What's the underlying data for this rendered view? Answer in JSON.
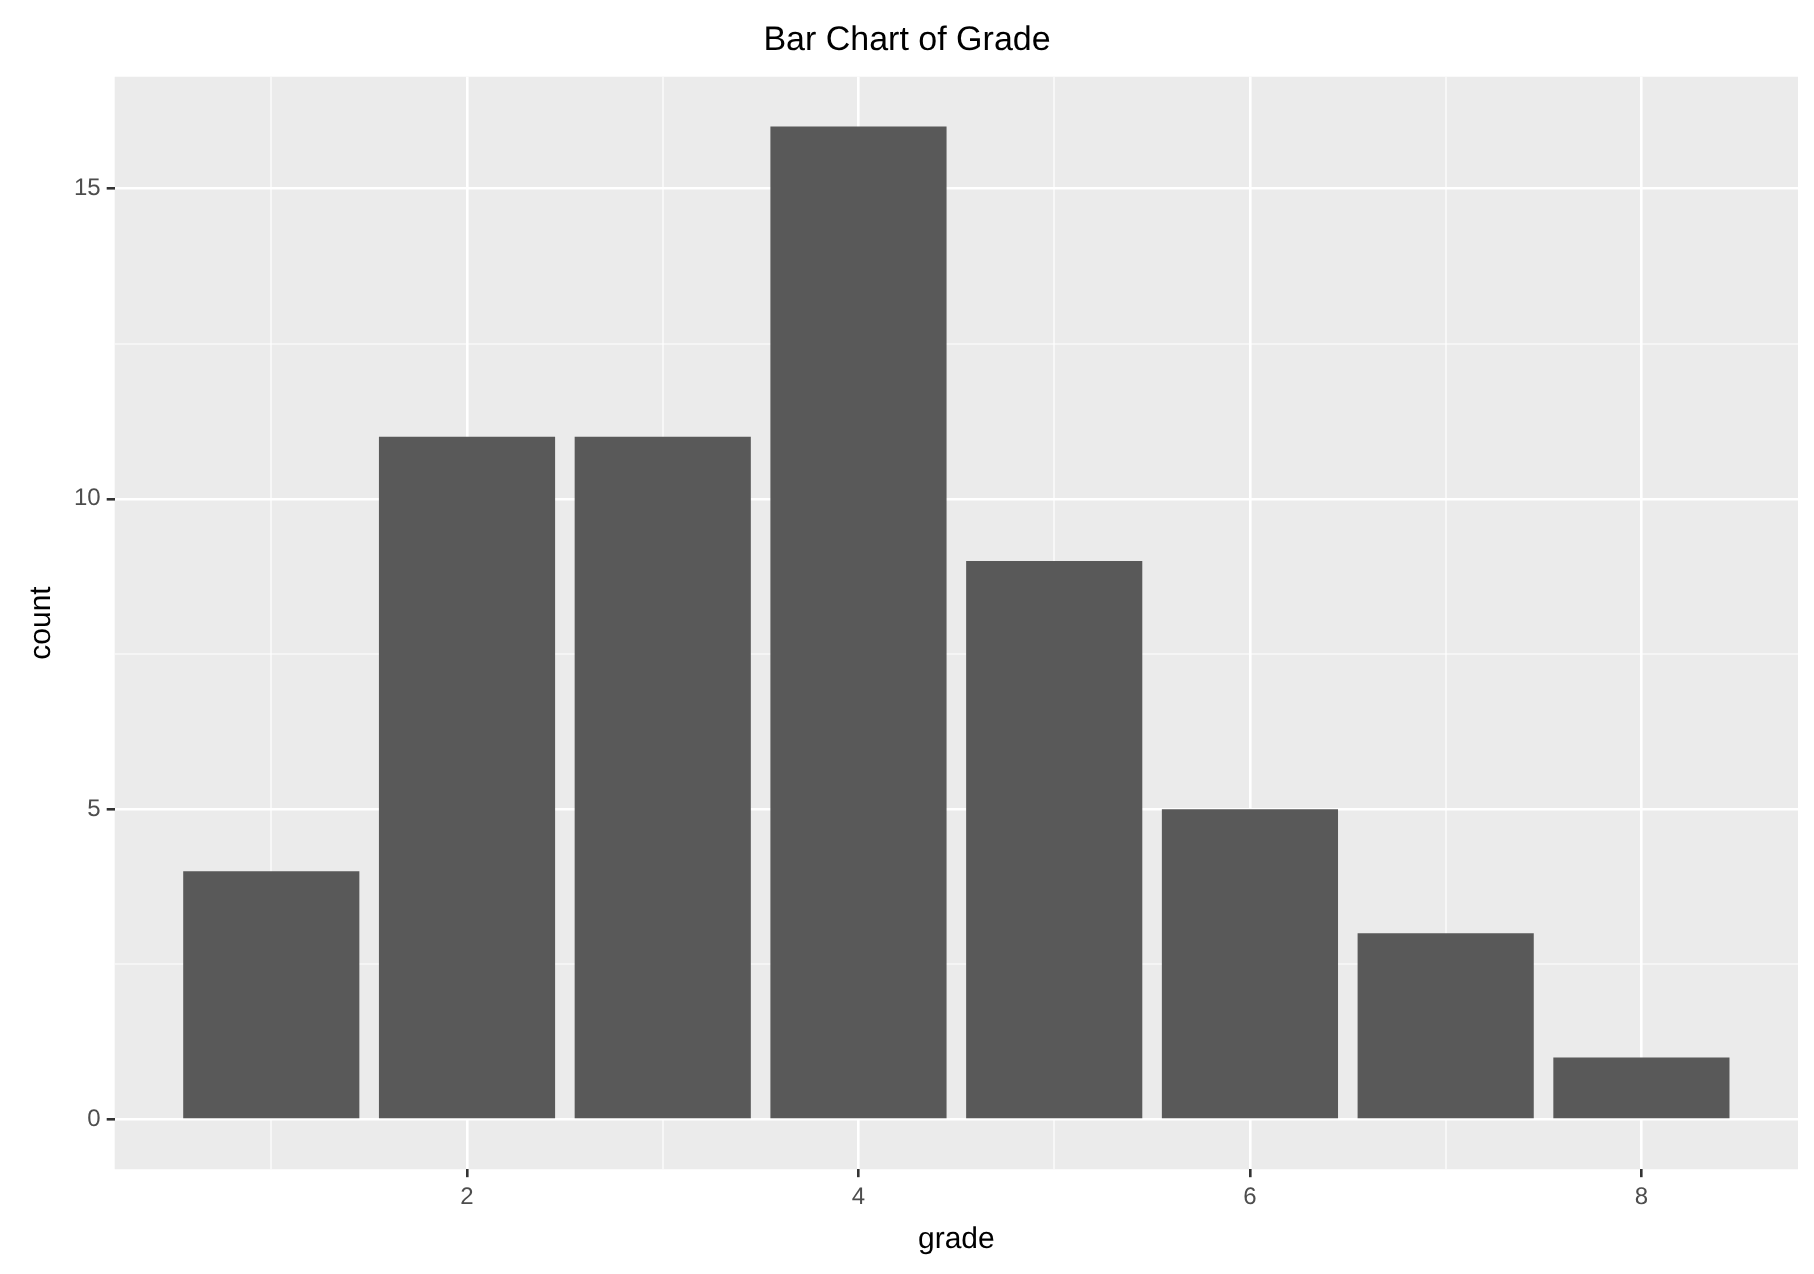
{
  "chart_data": {
    "type": "bar",
    "title": "Bar Chart of Grade",
    "xlabel": "grade",
    "ylabel": "count",
    "x": [
      1,
      2,
      3,
      4,
      5,
      6,
      7,
      8
    ],
    "values": [
      4,
      11,
      11,
      16,
      9,
      5,
      3,
      1
    ],
    "color": "#595959",
    "xlim": [
      0.2,
      8.8
    ],
    "xticks": [
      {
        "value": 1,
        "label": null
      },
      2,
      {
        "value": 3,
        "label": null
      },
      4,
      {
        "value": 5,
        "label": null
      },
      6,
      {
        "value": 7,
        "label": null
      },
      8
    ],
    "ylim": [
      -0.8,
      16.8
    ],
    "yticks": [
      0,
      {
        "value": 2.5,
        "label": null
      },
      5,
      {
        "value": 7.5,
        "label": null
      },
      10,
      {
        "value": 12.5,
        "label": null
      },
      15
    ],
    "grid": true,
    "legend": false
  }
}
